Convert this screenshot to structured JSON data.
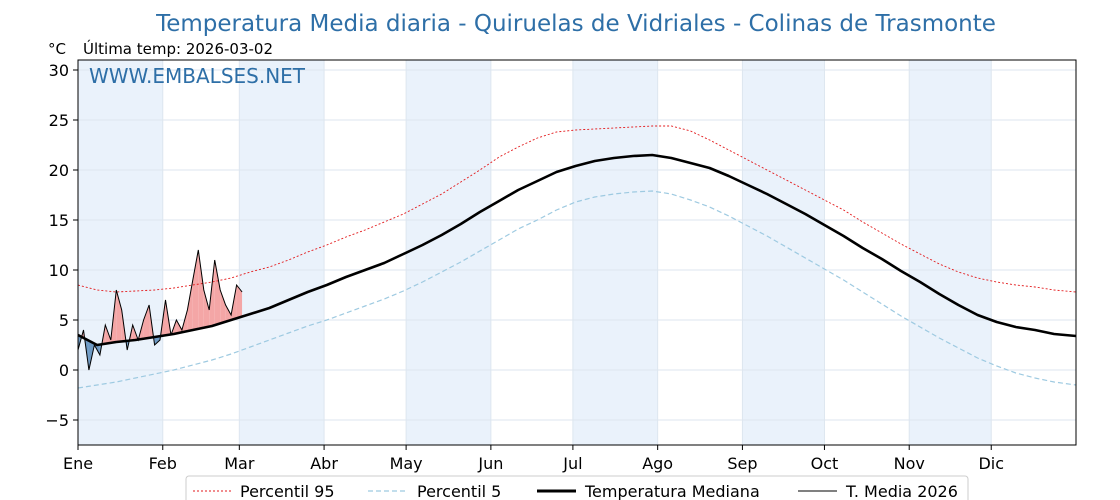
{
  "chart_data": {
    "type": "line",
    "title": "Temperatura Media diaria - Quiruelas de Vidriales - Colinas de Trasmonte",
    "unit_label": "°C",
    "last_temp_label": "Última temp: 2026-03-02",
    "watermark": "WWW.EMBALSES.NET",
    "ylim": [
      -7.5,
      31
    ],
    "xlim": [
      1,
      366
    ],
    "yticks": [
      "−5",
      "0",
      "5",
      "10",
      "15",
      "20",
      "25",
      "30"
    ],
    "ytick_values": [
      -5,
      0,
      5,
      10,
      15,
      20,
      25,
      30
    ],
    "month_labels": [
      "Ene",
      "Feb",
      "Mar",
      "Abr",
      "May",
      "Jun",
      "Jul",
      "Ago",
      "Sep",
      "Oct",
      "Nov",
      "Dic"
    ],
    "month_start_days": [
      1,
      32,
      60,
      91,
      121,
      152,
      182,
      213,
      244,
      274,
      305,
      335
    ],
    "legend": [
      "Percentil 95",
      "Percentil 5",
      "Temperatura Mediana",
      "T. Media 2026"
    ],
    "colors": {
      "p95": "#e31a1c",
      "p5": "#9ecae1",
      "median": "#000000",
      "current": "#000000",
      "above_fill": "#f4a6a6",
      "below_fill": "#6e9ac4",
      "band": "#eaf2fb",
      "title": "#2e6fa7"
    },
    "series": [
      {
        "name": "Temperatura Mediana",
        "key": "median",
        "x": [
          1,
          8,
          15,
          22,
          29,
          36,
          43,
          50,
          57,
          64,
          71,
          78,
          85,
          92,
          99,
          106,
          113,
          120,
          127,
          134,
          141,
          148,
          155,
          162,
          169,
          176,
          183,
          190,
          197,
          204,
          211,
          218,
          225,
          232,
          239,
          246,
          253,
          260,
          267,
          274,
          281,
          288,
          295,
          302,
          309,
          316,
          323,
          330,
          337,
          344,
          351,
          358,
          366
        ],
        "values": [
          3.5,
          2.5,
          2.8,
          3.0,
          3.3,
          3.6,
          4.0,
          4.4,
          5.0,
          5.6,
          6.2,
          7.0,
          7.8,
          8.5,
          9.3,
          10.0,
          10.7,
          11.6,
          12.5,
          13.5,
          14.6,
          15.8,
          16.9,
          18.0,
          18.9,
          19.8,
          20.4,
          20.9,
          21.2,
          21.4,
          21.5,
          21.2,
          20.7,
          20.2,
          19.4,
          18.5,
          17.6,
          16.6,
          15.6,
          14.5,
          13.4,
          12.2,
          11.1,
          9.9,
          8.8,
          7.6,
          6.5,
          5.5,
          4.8,
          4.3,
          4.0,
          3.6,
          3.4
        ]
      },
      {
        "name": "Percentil 95",
        "key": "p95",
        "x": [
          1,
          8,
          15,
          22,
          29,
          36,
          43,
          50,
          57,
          64,
          71,
          78,
          85,
          92,
          99,
          106,
          113,
          120,
          127,
          134,
          141,
          148,
          155,
          162,
          169,
          176,
          183,
          190,
          197,
          204,
          211,
          218,
          225,
          232,
          239,
          246,
          253,
          260,
          267,
          274,
          281,
          288,
          295,
          302,
          309,
          316,
          323,
          330,
          337,
          344,
          351,
          358,
          366
        ],
        "values": [
          8.5,
          8.0,
          7.8,
          7.9,
          8.0,
          8.2,
          8.5,
          8.8,
          9.2,
          9.8,
          10.3,
          11.0,
          11.8,
          12.5,
          13.3,
          14.0,
          14.8,
          15.6,
          16.6,
          17.6,
          18.8,
          20.0,
          21.3,
          22.3,
          23.2,
          23.8,
          24.0,
          24.1,
          24.2,
          24.3,
          24.4,
          24.4,
          23.9,
          23.0,
          22.0,
          21.0,
          20.0,
          19.0,
          18.0,
          17.0,
          16.0,
          14.8,
          13.7,
          12.6,
          11.6,
          10.6,
          9.8,
          9.2,
          8.8,
          8.5,
          8.3,
          8.0,
          7.8
        ]
      },
      {
        "name": "Percentil 5",
        "key": "p5",
        "x": [
          1,
          8,
          15,
          22,
          29,
          36,
          43,
          50,
          57,
          64,
          71,
          78,
          85,
          92,
          99,
          106,
          113,
          120,
          127,
          134,
          141,
          148,
          155,
          162,
          169,
          176,
          183,
          190,
          197,
          204,
          211,
          218,
          225,
          232,
          239,
          246,
          253,
          260,
          267,
          274,
          281,
          288,
          295,
          302,
          309,
          316,
          323,
          330,
          337,
          344,
          351,
          358,
          366
        ],
        "values": [
          -1.8,
          -1.5,
          -1.2,
          -0.8,
          -0.4,
          0.0,
          0.5,
          1.0,
          1.6,
          2.3,
          3.0,
          3.7,
          4.4,
          5.0,
          5.7,
          6.4,
          7.1,
          7.9,
          8.8,
          9.8,
          10.8,
          11.9,
          13.0,
          14.1,
          15.0,
          16.0,
          16.8,
          17.3,
          17.6,
          17.8,
          17.9,
          17.6,
          17.0,
          16.3,
          15.4,
          14.4,
          13.4,
          12.3,
          11.2,
          10.1,
          9.0,
          7.8,
          6.6,
          5.4,
          4.3,
          3.2,
          2.2,
          1.2,
          0.4,
          -0.3,
          -0.8,
          -1.2,
          -1.5
        ]
      },
      {
        "name": "T. Media 2026",
        "key": "current",
        "x": [
          1,
          3,
          5,
          7,
          9,
          11,
          13,
          15,
          17,
          19,
          21,
          23,
          25,
          27,
          29,
          31,
          33,
          35,
          37,
          39,
          41,
          43,
          45,
          47,
          49,
          51,
          53,
          55,
          57,
          59,
          61
        ],
        "values": [
          2.0,
          4.0,
          0.0,
          2.5,
          1.5,
          4.5,
          3.0,
          8.0,
          6.0,
          2.0,
          4.5,
          3.0,
          5.0,
          6.5,
          2.5,
          3.0,
          7.0,
          3.5,
          5.0,
          4.0,
          6.0,
          9.0,
          12.0,
          8.0,
          6.0,
          11.0,
          8.0,
          6.5,
          5.5,
          8.5,
          7.8
        ]
      }
    ]
  }
}
